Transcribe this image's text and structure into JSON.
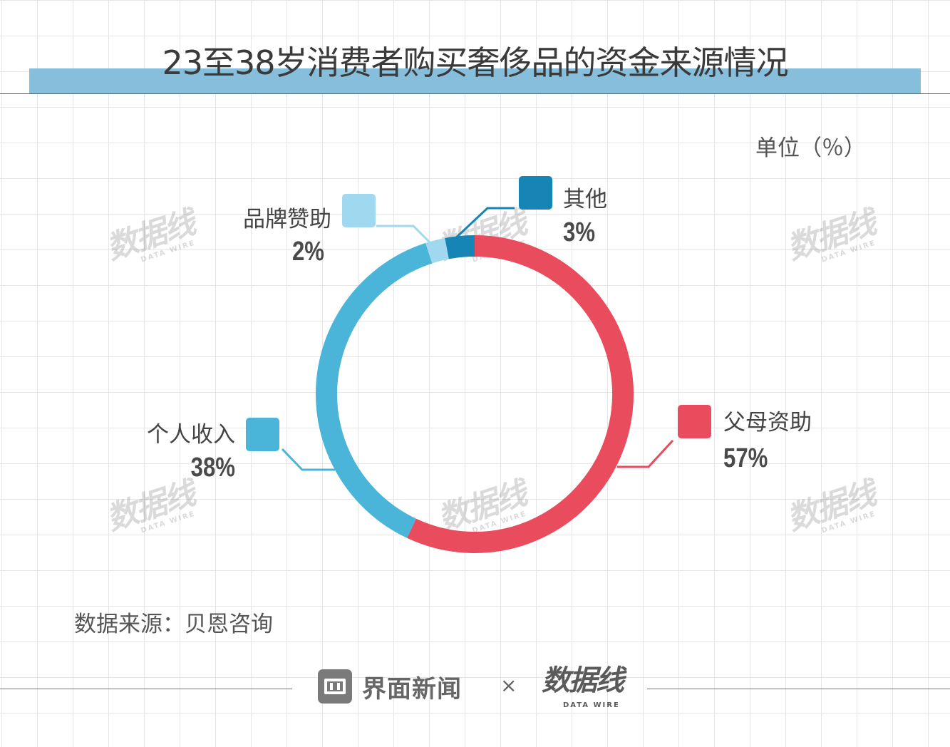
{
  "title": "23至38岁消费者购买奢侈品的资金来源情况",
  "unit_label": "单位（％）",
  "source_label": "数据来源：贝恩咨询",
  "footer": {
    "brand": "界面新闻",
    "separator": "×",
    "partner": "数据线",
    "partner_sub": "DATA WIRE"
  },
  "watermark": {
    "text": "数据线",
    "sub": "DATA WIRE"
  },
  "chart_data": {
    "type": "pie",
    "style": "donut",
    "slices": [
      {
        "label": "父母资助",
        "value": 57,
        "value_label": "57%",
        "color": "#e84c5d"
      },
      {
        "label": "个人收入",
        "value": 38,
        "value_label": "38%",
        "color": "#4ab5d9"
      },
      {
        "label": "品牌赞助",
        "value": 2,
        "value_label": "2%",
        "color": "#9fd8ef"
      },
      {
        "label": "其他",
        "value": 3,
        "value_label": "3%",
        "color": "#1684b5"
      }
    ]
  }
}
